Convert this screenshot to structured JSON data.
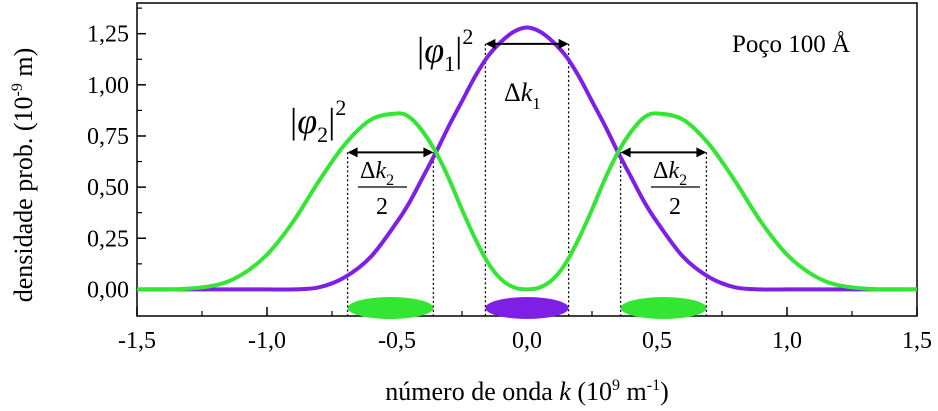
{
  "chart_data": {
    "type": "line",
    "xlabel_text": "número de onda ",
    "xlabel_var": "k",
    "xlabel_units": " (10",
    "xlabel_exp": "9",
    "xlabel_unit_m": " m",
    "xlabel_unit_exp": "-1",
    "xlabel_close": ")",
    "ylabel_text": "densidade prob. (10",
    "ylabel_exp": "-9",
    "ylabel_close": " m)",
    "xlim": [
      -1.5,
      1.5
    ],
    "ylim": [
      -0.13,
      1.4
    ],
    "x_ticks": [
      -1.5,
      -1.0,
      -0.5,
      0.0,
      0.5,
      1.0,
      1.5
    ],
    "x_tick_labels": [
      "-1,5",
      "-1,0",
      "-0,5",
      "0,0",
      "0,5",
      "1,0",
      "1,5"
    ],
    "y_ticks": [
      0.0,
      0.25,
      0.5,
      0.75,
      1.0,
      1.25
    ],
    "y_tick_labels": [
      "0,00",
      "0,25",
      "0,50",
      "0,75",
      "1,00",
      "1,25"
    ],
    "grid": false,
    "series": [
      {
        "color": "#7f1fe6",
        "x": [
          -1.5,
          -1.35,
          -1.2,
          -1.1,
          -1.0,
          -0.9,
          -0.8,
          -0.7,
          -0.6,
          -0.5,
          -0.45,
          -0.4,
          -0.35,
          -0.3,
          -0.25,
          -0.2,
          -0.15,
          -0.1,
          -0.05,
          0.0,
          0.05,
          0.1,
          0.15,
          0.2,
          0.25,
          0.3,
          0.35,
          0.4,
          0.45,
          0.5,
          0.6,
          0.7,
          0.8,
          0.9,
          1.0,
          1.1,
          1.2,
          1.35,
          1.5
        ],
        "y": [
          0.0,
          0.0,
          0.0,
          0.0,
          0.0,
          0.0,
          0.01,
          0.06,
          0.16,
          0.33,
          0.43,
          0.55,
          0.67,
          0.8,
          0.92,
          1.04,
          1.14,
          1.21,
          1.26,
          1.28,
          1.26,
          1.21,
          1.14,
          1.04,
          0.92,
          0.8,
          0.67,
          0.55,
          0.43,
          0.33,
          0.16,
          0.06,
          0.01,
          0.0,
          0.0,
          0.0,
          0.0,
          0.0,
          0.0
        ]
      },
      {
        "color": "#33e633",
        "x": [
          -1.5,
          -1.35,
          -1.2,
          -1.1,
          -1.0,
          -0.9,
          -0.8,
          -0.7,
          -0.6,
          -0.5,
          -0.45,
          -0.4,
          -0.35,
          -0.3,
          -0.25,
          -0.2,
          -0.15,
          -0.1,
          -0.05,
          0.0,
          0.05,
          0.1,
          0.15,
          0.2,
          0.25,
          0.3,
          0.35,
          0.4,
          0.45,
          0.5,
          0.6,
          0.7,
          0.8,
          0.9,
          1.0,
          1.1,
          1.2,
          1.35,
          1.5
        ],
        "y": [
          0.0,
          0.0,
          0.02,
          0.07,
          0.17,
          0.33,
          0.53,
          0.71,
          0.83,
          0.86,
          0.84,
          0.77,
          0.67,
          0.54,
          0.39,
          0.25,
          0.13,
          0.05,
          0.01,
          0.0,
          0.01,
          0.05,
          0.13,
          0.25,
          0.39,
          0.54,
          0.67,
          0.77,
          0.84,
          0.86,
          0.83,
          0.71,
          0.53,
          0.33,
          0.17,
          0.07,
          0.02,
          0.0,
          0.0
        ]
      }
    ],
    "vlines": [
      -0.69,
      -0.36,
      -0.16,
      0.16,
      0.36,
      0.69
    ],
    "arrows": [
      {
        "x1": -0.69,
        "x2": -0.36,
        "y": 0.67
      },
      {
        "x1": -0.16,
        "x2": 0.16,
        "y": 1.2
      },
      {
        "x1": 0.36,
        "x2": 0.69,
        "y": 0.67
      }
    ],
    "ellipses": [
      {
        "cx": -0.525,
        "rx": 0.165,
        "color": "#33e633"
      },
      {
        "cx": 0.0,
        "rx": 0.16,
        "color": "#7f1fe6"
      },
      {
        "cx": 0.525,
        "rx": 0.165,
        "color": "#33e633"
      }
    ],
    "annotations": {
      "well": "Poço 100 Å",
      "phi1_open": "|",
      "phi1_sym": "φ",
      "phi1_sub": "1",
      "phi1_close": "|",
      "phi1_sup": "2",
      "phi2_open": "|",
      "phi2_sym": "φ",
      "phi2_sub": "2",
      "phi2_close": "|",
      "phi2_sup": "2",
      "dk1_delta": "Δ",
      "dk1_k": "k",
      "dk1_sub": "1",
      "dk2_delta": "Δ",
      "dk2_k": "k",
      "dk2_sub": "2",
      "dk2_den": "2"
    }
  }
}
